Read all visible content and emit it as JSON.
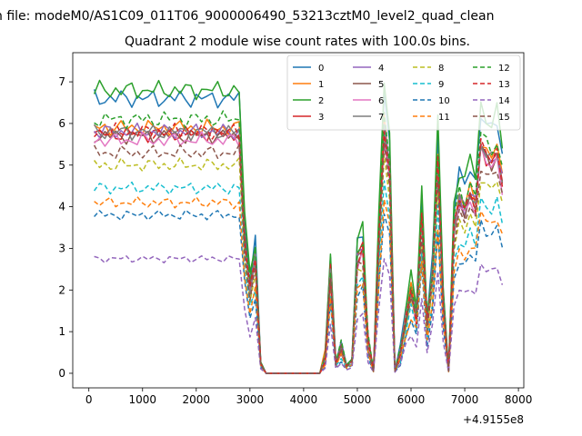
{
  "figure": {
    "suptitle": "n file: modeM0/AS1C09_011T06_9000006490_53213cztM0_level2_quad_clean",
    "title": "Quadrant 2 module wise count rates with 100.0s bins.",
    "offset_label": "+4.9155e8"
  },
  "chart_data": {
    "type": "line",
    "title": "Quadrant 2 module wise count rates with 100.0s bins.",
    "xlabel": "",
    "ylabel": "",
    "xlim": [
      -300,
      8100
    ],
    "ylim": [
      -0.35,
      7.7
    ],
    "x_offset": 491550000,
    "xticks": [
      0,
      1000,
      2000,
      3000,
      4000,
      5000,
      6000,
      7000,
      8000
    ],
    "yticks": [
      0,
      1,
      2,
      3,
      4,
      5,
      6,
      7
    ],
    "grid": false,
    "legend": {
      "placement": "top-right",
      "columns": 4
    },
    "x": [
      100,
      200,
      300,
      400,
      500,
      600,
      700,
      800,
      900,
      1000,
      1100,
      1200,
      1300,
      1400,
      1500,
      1600,
      1700,
      1800,
      1900,
      2000,
      2100,
      2200,
      2300,
      2400,
      2500,
      2600,
      2700,
      2800,
      2900,
      3000,
      3100,
      3200,
      3300,
      3400,
      3500,
      3600,
      3700,
      3800,
      3900,
      4000,
      4100,
      4200,
      4300,
      4400,
      4500,
      4600,
      4700,
      4800,
      4900,
      5000,
      5100,
      5200,
      5300,
      5400,
      5500,
      5600,
      5700,
      5800,
      5900,
      6000,
      6100,
      6200,
      6300,
      6400,
      6500,
      6600,
      6700,
      6800,
      6900,
      7000,
      7100,
      7200,
      7300,
      7400,
      7500,
      7600,
      7700
    ],
    "series": [
      {
        "name": "0",
        "color": "#1f77b4",
        "dash": "solid",
        "level": 6.6,
        "seed": 1
      },
      {
        "name": "1",
        "color": "#ff7f0e",
        "dash": "solid",
        "level": 5.9,
        "seed": 2
      },
      {
        "name": "2",
        "color": "#2ca02c",
        "dash": "solid",
        "level": 6.8,
        "seed": 3
      },
      {
        "name": "3",
        "color": "#d62728",
        "dash": "solid",
        "level": 5.75,
        "seed": 4
      },
      {
        "name": "4",
        "color": "#9467bd",
        "dash": "solid",
        "level": 5.8,
        "seed": 5
      },
      {
        "name": "5",
        "color": "#8c564b",
        "dash": "solid",
        "level": 5.7,
        "seed": 6
      },
      {
        "name": "6",
        "color": "#e377c2",
        "dash": "solid",
        "level": 5.6,
        "seed": 7
      },
      {
        "name": "7",
        "color": "#7f7f7f",
        "dash": "solid",
        "level": 5.8,
        "seed": 8
      },
      {
        "name": "8",
        "color": "#bcbd22",
        "dash": "dashed",
        "level": 5.0,
        "seed": 9
      },
      {
        "name": "9",
        "color": "#17becf",
        "dash": "dashed",
        "level": 4.45,
        "seed": 10
      },
      {
        "name": "10",
        "color": "#1f77b4",
        "dash": "dashed",
        "level": 3.8,
        "seed": 11
      },
      {
        "name": "11",
        "color": "#ff7f0e",
        "dash": "dashed",
        "level": 4.1,
        "seed": 12
      },
      {
        "name": "12",
        "color": "#2ca02c",
        "dash": "dashed",
        "level": 6.1,
        "seed": 13
      },
      {
        "name": "13",
        "color": "#d62728",
        "dash": "dashed",
        "level": 5.8,
        "seed": 14
      },
      {
        "name": "14",
        "color": "#9467bd",
        "dash": "dashed",
        "level": 2.75,
        "seed": 15
      },
      {
        "name": "15",
        "color": "#8c564b",
        "dash": "dashed",
        "level": 5.3,
        "seed": 16
      }
    ],
    "profile": [
      1,
      1,
      1,
      1,
      1,
      1,
      1,
      1,
      1,
      1,
      1,
      1,
      1,
      1,
      1,
      1,
      1,
      1,
      1,
      1,
      1,
      1,
      1,
      1,
      1,
      1,
      1,
      1,
      0.55,
      0.35,
      0.48,
      0.04,
      0,
      0,
      0,
      0,
      0,
      0,
      0,
      0,
      0,
      0,
      0,
      0.06,
      0.42,
      0.04,
      0.1,
      0.03,
      0.05,
      0.48,
      0.52,
      0.12,
      0.01,
      0.55,
      1.02,
      0.85,
      0.01,
      0.08,
      0.22,
      0.34,
      0.24,
      0.65,
      0.2,
      0.4,
      0.88,
      0.3,
      0.01,
      0.6,
      0.72,
      0.68,
      0.75,
      0.7,
      0.95,
      0.9,
      0.88,
      0.92,
      0.8
    ]
  }
}
